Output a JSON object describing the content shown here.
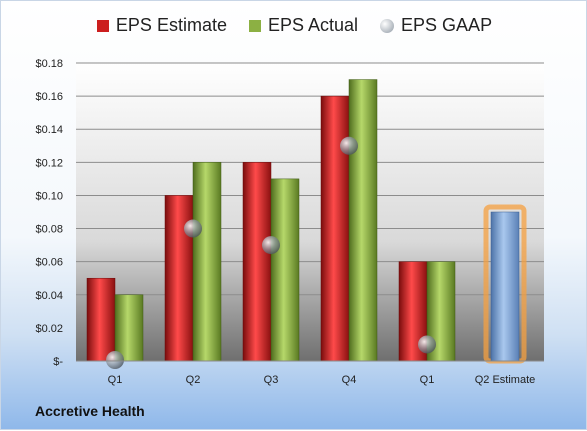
{
  "company": "Accretive Health",
  "chart_data": {
    "type": "bar",
    "categories": [
      "Q1",
      "Q2",
      "Q3",
      "Q4",
      "Q1",
      "Q2 Estimate"
    ],
    "series": [
      {
        "name": "EPS Estimate",
        "kind": "bar",
        "color": "#cc1e1e",
        "values": [
          0.05,
          0.1,
          0.12,
          0.16,
          0.06,
          null
        ]
      },
      {
        "name": "EPS Actual",
        "kind": "bar",
        "color": "#8cb043",
        "values": [
          0.04,
          0.12,
          0.11,
          0.17,
          0.06,
          null
        ]
      },
      {
        "name": "EPS GAAP",
        "kind": "marker",
        "color": "#9aa3ad",
        "values": [
          0.0,
          0.08,
          0.07,
          0.13,
          0.01,
          null
        ]
      },
      {
        "name": "",
        "kind": "bar",
        "color": "#7fa6d8",
        "highlight": "#f5a040",
        "values": [
          null,
          null,
          null,
          null,
          null,
          0.09
        ]
      }
    ],
    "yticks": [
      0,
      0.02,
      0.04,
      0.06,
      0.08,
      0.1,
      0.12,
      0.14,
      0.16,
      0.18
    ],
    "ytick_labels": [
      "$-",
      "$0.02",
      "$0.04",
      "$0.06",
      "$0.08",
      "$0.10",
      "$0.12",
      "$0.14",
      "$0.16",
      "$0.18"
    ],
    "ylim": [
      0,
      0.18
    ],
    "grid": true,
    "legend_position": "top"
  }
}
